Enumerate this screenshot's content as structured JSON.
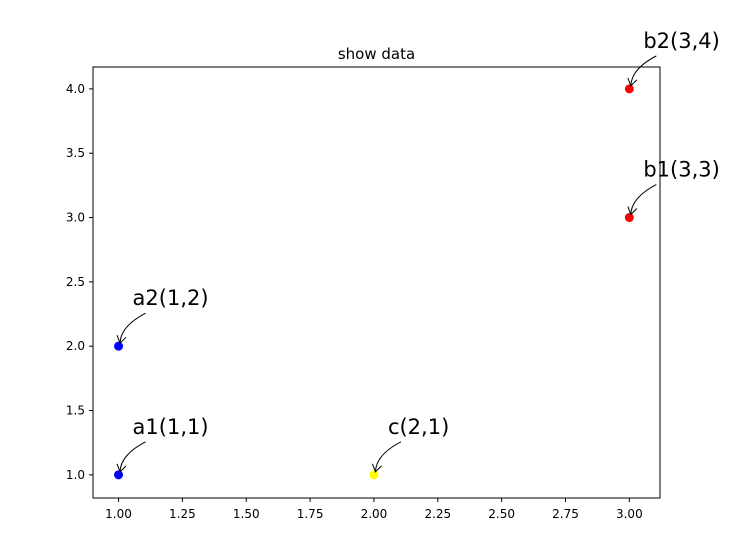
{
  "chart_data": {
    "type": "scatter",
    "title": "show data",
    "xlabel": "",
    "ylabel": "",
    "xlim": [
      0.9,
      3.12
    ],
    "ylim": [
      0.82,
      4.17
    ],
    "xticks": [
      1.0,
      1.25,
      1.5,
      1.75,
      2.0,
      2.25,
      2.5,
      2.75,
      3.0
    ],
    "xtick_labels": [
      "1.00",
      "1.25",
      "1.50",
      "1.75",
      "2.00",
      "2.25",
      "2.50",
      "2.75",
      "3.00"
    ],
    "yticks": [
      1.0,
      1.5,
      2.0,
      2.5,
      3.0,
      3.5,
      4.0
    ],
    "ytick_labels": [
      "1.0",
      "1.5",
      "2.0",
      "2.5",
      "3.0",
      "3.5",
      "4.0"
    ],
    "grid": false,
    "points": [
      {
        "x": 1,
        "y": 1,
        "label": "a1(1,1)",
        "color": "#0000ff"
      },
      {
        "x": 1,
        "y": 2,
        "label": "a2(1,2)",
        "color": "#0000ff"
      },
      {
        "x": 3,
        "y": 3,
        "label": "b1(3,3)",
        "color": "#ff0000"
      },
      {
        "x": 3,
        "y": 4,
        "label": "b2(3,4)",
        "color": "#ff0000"
      },
      {
        "x": 2,
        "y": 1,
        "label": "c(2,1)",
        "color": "#ffff00"
      }
    ]
  }
}
